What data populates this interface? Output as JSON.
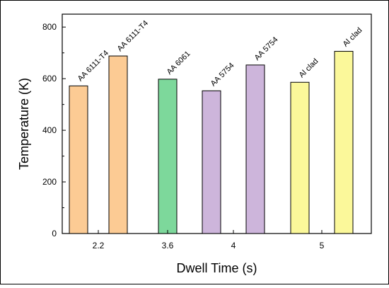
{
  "chart_data": {
    "type": "bar",
    "title": "",
    "xlabel": "Dwell Time (s)",
    "ylabel": "Temperature (K)",
    "ylim": [
      0,
      850
    ],
    "yticks": [
      0,
      200,
      400,
      600,
      800
    ],
    "grid": false,
    "legend": "none",
    "x_ticks": [
      "2.2",
      "3.6",
      "4",
      "5"
    ],
    "bars": [
      {
        "group": "2.2",
        "label": "AA 6111-T4",
        "value": 572,
        "color": "#fccb94"
      },
      {
        "group": "2.2",
        "label": "AA 6111-T4",
        "value": 688,
        "color": "#fccb94"
      },
      {
        "group": "3.6",
        "label": "AA 6061",
        "value": 598,
        "color": "#7dd89b"
      },
      {
        "group": "4",
        "label": "AA 5754",
        "value": 553,
        "color": "#cdb5db"
      },
      {
        "group": "4",
        "label": "AA 5754",
        "value": 653,
        "color": "#cdb5db"
      },
      {
        "group": "5",
        "label": "Al clad",
        "value": 586,
        "color": "#fbf89a"
      },
      {
        "group": "5",
        "label": "Al clad",
        "value": 706,
        "color": "#fbf89a"
      }
    ]
  }
}
